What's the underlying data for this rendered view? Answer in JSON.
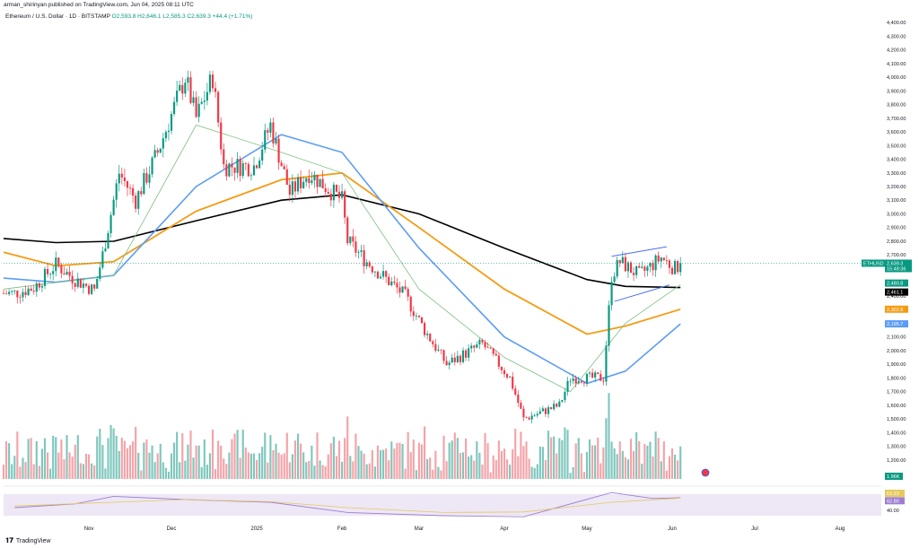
{
  "header": {
    "published": "arman_shirinyan published on TradingView.com, Jun 04, 2025 08:11 UTC"
  },
  "legend": {
    "symbol": "Ethereum / U.S. Dollar · 1D · BITSTAMP",
    "ohlc": "O2,593.8 H2,646.1 L2,585.3 C2,639.3 +44.4 (+1.71%)"
  },
  "footer": {
    "brand": "TradingView"
  },
  "colors": {
    "up": "#089981",
    "down": "#f23645",
    "vol_up": "#7ec7bd",
    "vol_down": "#f4a3a8",
    "ma_black": "#000000",
    "ma_orange": "#f59b13",
    "ma_blue": "#5b9cf6",
    "ma_green": "#7fbf7f",
    "rsi": "#9c7fd0",
    "rsi_ma": "#e6c85a",
    "channel": "#4c6ef5"
  },
  "chart_data": [
    {
      "type": "candlestick",
      "title": "Ethereum / U.S. Dollar · 1D · BITSTAMP",
      "x_axis_labels": [
        "Nov",
        "Dec",
        "2025",
        "Feb",
        "Mar",
        "Apr",
        "May",
        "Jun",
        "Jul",
        "Aug"
      ],
      "y_axis_ticks": [
        4400,
        4300,
        4200,
        4100,
        4000,
        3900,
        3800,
        3700,
        3600,
        3500,
        3400,
        3300,
        3200,
        3100,
        3000,
        2900,
        2800,
        2700,
        2600,
        2500,
        2400,
        2300,
        2200,
        2100,
        2000,
        1900,
        1800,
        1700,
        1600,
        1500,
        1400,
        1300,
        1200
      ],
      "y_axis_labels": [
        "4,400.00",
        "4,300.00",
        "4,200.00",
        "4,100.00",
        "4,000.00",
        "3,900.00",
        "3,800.00",
        "3,700.00",
        "3,600.00",
        "3,500.00",
        "3,400.00",
        "3,300.00",
        "3,200.00",
        "3,100.00",
        "3,000.00",
        "2,900.00",
        "2,800.00",
        "2,700.00",
        "2,600.00",
        "2,500.00",
        "2,400.00",
        "2,300.00",
        "2,200.00",
        "2,100.00",
        "2,000.00",
        "1,900.00",
        "1,800.00",
        "1,700.00",
        "1,600.00",
        "1,500.00",
        "1,400.00",
        "1,300.00",
        "1,200.00"
      ],
      "ylim": [
        1140,
        4440
      ],
      "close_path": [
        {
          "date": "2024-10-05",
          "close": 2420
        },
        {
          "date": "2024-10-12",
          "close": 2460
        },
        {
          "date": "2024-10-20",
          "close": 2630
        },
        {
          "date": "2024-10-27",
          "close": 2520
        },
        {
          "date": "2024-11-03",
          "close": 2440
        },
        {
          "date": "2024-11-06",
          "close": 2700
        },
        {
          "date": "2024-11-12",
          "close": 3300
        },
        {
          "date": "2024-11-18",
          "close": 3100
        },
        {
          "date": "2024-11-26",
          "close": 3450
        },
        {
          "date": "2024-12-06",
          "close": 4000
        },
        {
          "date": "2024-12-10",
          "close": 3700
        },
        {
          "date": "2024-12-16",
          "close": 4000
        },
        {
          "date": "2024-12-20",
          "close": 3350
        },
        {
          "date": "2024-12-31",
          "close": 3350
        },
        {
          "date": "2025-01-06",
          "close": 3650
        },
        {
          "date": "2025-01-13",
          "close": 3150
        },
        {
          "date": "2025-01-20",
          "close": 3300
        },
        {
          "date": "2025-02-01",
          "close": 3100
        },
        {
          "date": "2025-02-03",
          "close": 2800
        },
        {
          "date": "2025-02-10",
          "close": 2650
        },
        {
          "date": "2025-02-24",
          "close": 2400
        },
        {
          "date": "2025-03-03",
          "close": 2150
        },
        {
          "date": "2025-03-11",
          "close": 1900
        },
        {
          "date": "2025-03-24",
          "close": 2050
        },
        {
          "date": "2025-04-03",
          "close": 1800
        },
        {
          "date": "2025-04-08",
          "close": 1500
        },
        {
          "date": "2025-04-21",
          "close": 1600
        },
        {
          "date": "2025-04-25",
          "close": 1800
        },
        {
          "date": "2025-05-07",
          "close": 1800
        },
        {
          "date": "2025-05-10",
          "close": 2550
        },
        {
          "date": "2025-05-13",
          "close": 2650
        },
        {
          "date": "2025-05-20",
          "close": 2550
        },
        {
          "date": "2025-05-28",
          "close": 2680
        },
        {
          "date": "2025-06-02",
          "close": 2600
        },
        {
          "date": "2025-06-04",
          "close": 2639.3
        }
      ],
      "last_close": 2639.3,
      "series": [
        {
          "points": [
            {
              "date": "2024-10-01",
              "value": 2820
            },
            {
              "date": "2024-10-20",
              "value": 2790
            },
            {
              "date": "2024-11-10",
              "value": 2800
            },
            {
              "date": "2024-12-10",
              "value": 2950
            },
            {
              "date": "2025-01-10",
              "value": 3100
            },
            {
              "date": "2025-02-01",
              "value": 3140
            },
            {
              "date": "2025-03-01",
              "value": 3000
            },
            {
              "date": "2025-04-01",
              "value": 2750
            },
            {
              "date": "2025-05-01",
              "value": 2520
            },
            {
              "date": "2025-05-15",
              "value": 2470
            },
            {
              "date": "2025-06-04",
              "value": 2461.1
            }
          ]
        },
        {
          "points": [
            {
              "date": "2024-10-01",
              "value": 2720
            },
            {
              "date": "2024-10-20",
              "value": 2620
            },
            {
              "date": "2024-11-10",
              "value": 2650
            },
            {
              "date": "2024-12-10",
              "value": 3020
            },
            {
              "date": "2025-01-10",
              "value": 3250
            },
            {
              "date": "2025-02-01",
              "value": 3300
            },
            {
              "date": "2025-03-01",
              "value": 2900
            },
            {
              "date": "2025-04-01",
              "value": 2450
            },
            {
              "date": "2025-05-01",
              "value": 2120
            },
            {
              "date": "2025-05-15",
              "value": 2180
            },
            {
              "date": "2025-06-04",
              "value": 2302.8
            }
          ]
        },
        {
          "points": [
            {
              "date": "2024-10-01",
              "value": 2530
            },
            {
              "date": "2024-10-20",
              "value": 2500
            },
            {
              "date": "2024-11-10",
              "value": 2550
            },
            {
              "date": "2024-12-10",
              "value": 3200
            },
            {
              "date": "2025-01-10",
              "value": 3580
            },
            {
              "date": "2025-02-01",
              "value": 3450
            },
            {
              "date": "2025-03-01",
              "value": 2750
            },
            {
              "date": "2025-04-01",
              "value": 2100
            },
            {
              "date": "2025-05-01",
              "value": 1760
            },
            {
              "date": "2025-05-15",
              "value": 1850
            },
            {
              "date": "2025-06-04",
              "value": 2195.7
            }
          ]
        },
        {
          "points": [
            {
              "date": "2024-10-01",
              "value": 2450
            },
            {
              "date": "2024-11-10",
              "value": 2550
            },
            {
              "date": "2024-12-10",
              "value": 3650
            },
            {
              "date": "2025-01-10",
              "value": 3450
            },
            {
              "date": "2025-02-01",
              "value": 3300
            },
            {
              "date": "2025-03-01",
              "value": 2450
            },
            {
              "date": "2025-04-01",
              "value": 1950
            },
            {
              "date": "2025-04-25",
              "value": 1700
            },
            {
              "date": "2025-05-15",
              "value": 2200
            },
            {
              "date": "2025-06-04",
              "value": 2480.8
            }
          ]
        }
      ],
      "price_labels": [
        {
          "text": "ETHUSD",
          "value": 2639.3,
          "color": "#089981"
        },
        {
          "text": "2,639.3",
          "value": 2639.3,
          "color": "#089981"
        },
        {
          "text": "15:48:36",
          "value": 2639.3,
          "color": "#089981"
        },
        {
          "text": "2,480.8",
          "value": 2480.8,
          "color": "#089981"
        },
        {
          "text": "2,461.1",
          "value": 2461.1,
          "color": "#000000"
        },
        {
          "text": "2,302.8",
          "value": 2302.8,
          "color": "#f59b13"
        },
        {
          "text": "2,195.7",
          "value": 2195.7,
          "color": "#5b9cf6"
        },
        {
          "text": "1.96K",
          "value": 1960,
          "color": "#089981"
        }
      ],
      "channel_lines": [
        {
          "from": {
            "date": "2025-05-10",
            "value": 2690
          },
          "to": {
            "date": "2025-05-30",
            "value": 2760
          }
        },
        {
          "from": {
            "date": "2025-05-11",
            "value": 2360
          },
          "to": {
            "date": "2025-05-31",
            "value": 2480
          }
        }
      ]
    },
    {
      "type": "rsi",
      "y_axis_labels": [
        "63.33",
        "62.80",
        "40.00"
      ],
      "y_axis_ticks": [
        63.33,
        62.8,
        40
      ],
      "ylim": [
        25,
        75
      ],
      "band": [
        30,
        70
      ],
      "rsi_path": [
        {
          "date": "2024-10-05",
          "value": 45
        },
        {
          "date": "2024-10-27",
          "value": 52
        },
        {
          "date": "2024-11-10",
          "value": 66
        },
        {
          "date": "2024-12-06",
          "value": 60
        },
        {
          "date": "2025-01-06",
          "value": 55
        },
        {
          "date": "2025-02-03",
          "value": 36
        },
        {
          "date": "2025-03-10",
          "value": 30
        },
        {
          "date": "2025-04-08",
          "value": 28
        },
        {
          "date": "2025-05-10",
          "value": 73
        },
        {
          "date": "2025-05-25",
          "value": 62
        },
        {
          "date": "2025-06-04",
          "value": 63.33
        }
      ],
      "rsi_ma_path": [
        {
          "date": "2024-10-05",
          "value": 48
        },
        {
          "date": "2024-11-10",
          "value": 55
        },
        {
          "date": "2024-12-06",
          "value": 60
        },
        {
          "date": "2025-01-06",
          "value": 56
        },
        {
          "date": "2025-02-03",
          "value": 45
        },
        {
          "date": "2025-03-10",
          "value": 36
        },
        {
          "date": "2025-04-08",
          "value": 37
        },
        {
          "date": "2025-05-10",
          "value": 55
        },
        {
          "date": "2025-06-04",
          "value": 62.8
        }
      ]
    }
  ]
}
